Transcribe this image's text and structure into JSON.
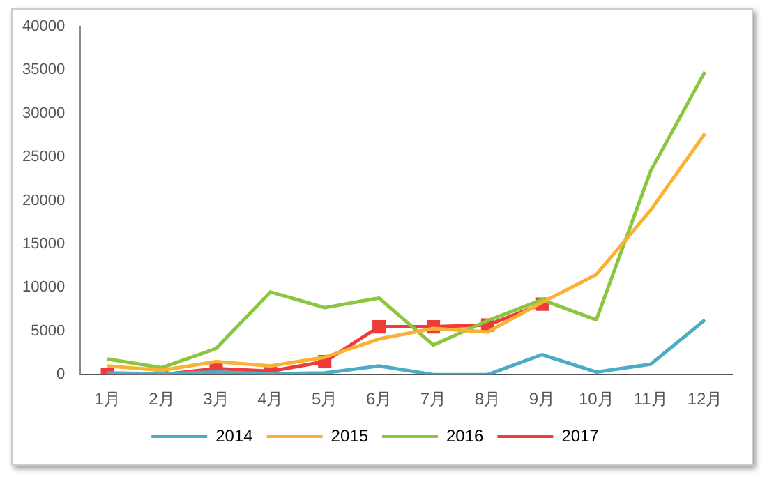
{
  "chart_data": {
    "type": "line",
    "categories": [
      "1月",
      "2月",
      "3月",
      "4月",
      "5月",
      "6月",
      "7月",
      "8月",
      "9月",
      "10月",
      "11月",
      "12月"
    ],
    "ylim": [
      0,
      40000
    ],
    "yticks": [
      0,
      5000,
      10000,
      15000,
      20000,
      25000,
      30000,
      35000,
      40000
    ],
    "grid": false,
    "legend": "bottom",
    "line_style": "solid",
    "series": [
      {
        "name": "2014",
        "color": "#4bacc6",
        "marker": "none",
        "values": [
          200,
          100,
          300,
          100,
          200,
          1000,
          0,
          0,
          2300,
          300,
          1200,
          6300
        ]
      },
      {
        "name": "2015",
        "color": "#f9b233",
        "marker": "none",
        "values": [
          1000,
          500,
          1500,
          1000,
          2000,
          4100,
          5300,
          4900,
          8300,
          11500,
          18900,
          27700
        ]
      },
      {
        "name": "2016",
        "color": "#8cc63f",
        "marker": "none",
        "values": [
          1800,
          800,
          3000,
          9500,
          7700,
          8800,
          3400,
          6200,
          8600,
          6300,
          23400,
          34800
        ]
      },
      {
        "name": "2017",
        "color": "#ee3b3b",
        "marker": "square",
        "values": [
          0,
          0,
          700,
          400,
          1500,
          5500,
          5500,
          5700,
          8100,
          null,
          null,
          null
        ]
      }
    ]
  }
}
